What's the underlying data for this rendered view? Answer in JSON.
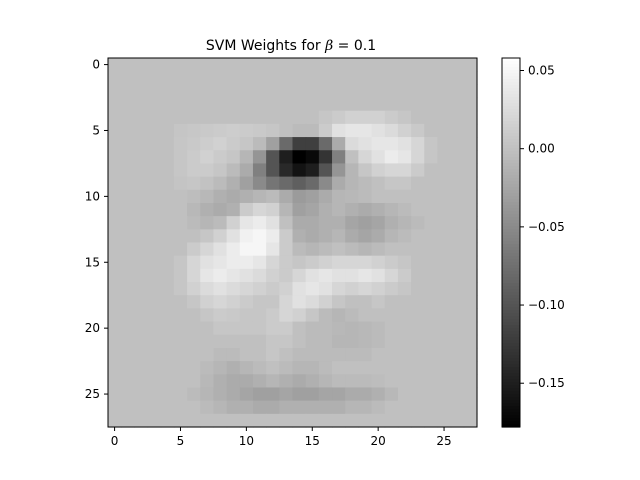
{
  "chart_data": {
    "type": "heatmap",
    "title_text": "SVM Weights for ",
    "title_math": "β",
    "title_value": " = 0.1",
    "colormap": "gray",
    "vmin": -0.178,
    "vmax": 0.058,
    "background_value": 0.0,
    "rows": 28,
    "cols": 28,
    "x_ticks": [
      0,
      5,
      10,
      15,
      20,
      25
    ],
    "y_ticks": [
      0,
      5,
      10,
      15,
      20,
      25
    ],
    "colorbar_ticks": [
      {
        "value": 0.05,
        "label": "0.05"
      },
      {
        "value": 0.0,
        "label": "0.00"
      },
      {
        "value": -0.05,
        "label": "−0.05"
      },
      {
        "value": -0.1,
        "label": "−0.10"
      },
      {
        "value": -0.15,
        "label": "−0.15"
      }
    ],
    "values": [
      [
        0,
        0,
        0,
        0,
        0,
        0,
        0,
        0,
        0,
        0,
        0,
        0,
        0,
        0,
        0,
        0,
        0,
        0,
        0,
        0,
        0,
        0,
        0,
        0,
        0,
        0,
        0,
        0
      ],
      [
        0,
        0,
        0,
        0,
        0,
        0,
        0,
        0,
        0,
        0,
        0,
        0,
        0,
        0,
        0,
        0,
        0,
        0,
        0,
        0,
        0,
        0,
        0,
        0,
        0,
        0,
        0,
        0
      ],
      [
        0,
        0,
        0,
        0,
        0,
        0,
        0,
        0,
        0,
        0,
        0,
        0,
        0,
        0,
        0,
        0,
        0,
        0,
        0,
        0,
        0,
        0,
        0,
        0,
        0,
        0,
        0,
        0
      ],
      [
        0,
        0,
        0,
        0,
        0,
        0,
        0,
        0,
        0,
        0,
        0,
        0,
        0,
        0,
        0,
        0,
        0,
        0,
        0,
        0,
        0,
        0,
        0,
        0,
        0,
        0,
        0,
        0
      ],
      [
        0,
        0,
        0,
        0,
        0,
        0,
        0,
        0,
        0,
        0,
        0,
        0,
        0,
        0,
        0,
        0,
        0.005,
        0.01,
        0.015,
        0.015,
        0.015,
        0.01,
        0.005,
        0,
        0,
        0,
        0,
        0
      ],
      [
        0,
        0,
        0,
        0,
        0,
        0.004,
        0.006,
        0.008,
        0.01,
        0.012,
        0.01,
        0.008,
        0.005,
        0,
        -0.005,
        -0.005,
        0.01,
        0.03,
        0.035,
        0.035,
        0.03,
        0.025,
        0.015,
        0.008,
        0,
        0,
        0,
        0
      ],
      [
        0,
        0,
        0,
        0,
        0,
        0.005,
        0.008,
        0.012,
        0.015,
        0.01,
        0.005,
        -0.005,
        -0.03,
        -0.08,
        -0.12,
        -0.12,
        -0.08,
        -0.02,
        0.025,
        0.03,
        0.035,
        0.035,
        0.03,
        0.02,
        0.005,
        0,
        0,
        0
      ],
      [
        0,
        0,
        0,
        0,
        0,
        0.005,
        0.01,
        0.015,
        0.01,
        0.005,
        -0.01,
        -0.04,
        -0.1,
        -0.15,
        -0.178,
        -0.17,
        -0.13,
        -0.06,
        0,
        0.02,
        0.03,
        0.04,
        0.035,
        0.02,
        0.005,
        0,
        0,
        0
      ],
      [
        0,
        0,
        0,
        0,
        0,
        0.005,
        0.01,
        0.01,
        0.005,
        -0.005,
        -0.02,
        -0.06,
        -0.1,
        -0.14,
        -0.16,
        -0.15,
        -0.1,
        -0.04,
        -0.01,
        0.005,
        0.015,
        0.02,
        0.02,
        0.01,
        0,
        0,
        0,
        0
      ],
      [
        0,
        0,
        0,
        0,
        0,
        0.003,
        0.005,
        0.002,
        -0.005,
        -0.015,
        -0.03,
        -0.05,
        -0.07,
        -0.08,
        -0.09,
        -0.08,
        -0.05,
        -0.02,
        -0.01,
        -0.005,
        0,
        0.005,
        0.005,
        0,
        0,
        0,
        0,
        0
      ],
      [
        0,
        0,
        0,
        0,
        0,
        0,
        -0.003,
        -0.008,
        -0.015,
        -0.02,
        -0.015,
        -0.01,
        -0.005,
        -0.02,
        -0.035,
        -0.03,
        -0.02,
        -0.01,
        -0.008,
        -0.005,
        0,
        0,
        0,
        0,
        0,
        0,
        0,
        0
      ],
      [
        0,
        0,
        0,
        0,
        0,
        0,
        -0.008,
        -0.015,
        -0.02,
        -0.015,
        0.01,
        0.02,
        0.015,
        -0.01,
        -0.03,
        -0.025,
        -0.015,
        -0.01,
        -0.015,
        -0.02,
        -0.015,
        -0.01,
        -0.005,
        0,
        0,
        0,
        0,
        0
      ],
      [
        0,
        0,
        0,
        0,
        0,
        0,
        -0.005,
        -0.01,
        -0.005,
        0.015,
        0.035,
        0.04,
        0.03,
        0,
        -0.02,
        -0.02,
        -0.015,
        -0.015,
        -0.025,
        -0.03,
        -0.025,
        -0.015,
        -0.01,
        -0.005,
        0,
        0,
        0,
        0
      ],
      [
        0,
        0,
        0,
        0,
        0,
        0,
        0,
        0.005,
        0.015,
        0.03,
        0.045,
        0.05,
        0.04,
        0.01,
        -0.015,
        -0.02,
        -0.015,
        -0.01,
        -0.02,
        -0.025,
        -0.02,
        -0.01,
        -0.005,
        0,
        0,
        0,
        0,
        0
      ],
      [
        0,
        0,
        0,
        0,
        0,
        0,
        0.01,
        0.02,
        0.03,
        0.04,
        0.05,
        0.05,
        0.035,
        0.01,
        -0.005,
        -0.01,
        -0.005,
        0,
        -0.005,
        -0.01,
        -0.005,
        0,
        0,
        0,
        0,
        0,
        0,
        0
      ],
      [
        0,
        0,
        0,
        0,
        0,
        0.005,
        0.02,
        0.03,
        0.035,
        0.04,
        0.04,
        0.035,
        0.02,
        0.01,
        0.005,
        0.01,
        0.015,
        0.02,
        0.02,
        0.02,
        0.015,
        0.01,
        0.005,
        0,
        0,
        0,
        0,
        0
      ],
      [
        0,
        0,
        0,
        0,
        0,
        0.005,
        0.02,
        0.035,
        0.04,
        0.035,
        0.03,
        0.025,
        0.015,
        0.01,
        0.02,
        0.03,
        0.035,
        0.03,
        0.03,
        0.035,
        0.03,
        0.02,
        0.01,
        0,
        0,
        0,
        0,
        0
      ],
      [
        0,
        0,
        0,
        0,
        0,
        0.005,
        0.015,
        0.025,
        0.03,
        0.025,
        0.02,
        0.015,
        0.01,
        0.015,
        0.03,
        0.035,
        0.03,
        0.02,
        0.015,
        0.02,
        0.015,
        0.01,
        0.005,
        0,
        0,
        0,
        0,
        0
      ],
      [
        0,
        0,
        0,
        0,
        0,
        0,
        0.005,
        0.015,
        0.02,
        0.015,
        0.01,
        0.005,
        0.005,
        0.02,
        0.03,
        0.025,
        0.015,
        0.005,
        0,
        0,
        0.005,
        0,
        0,
        0,
        0,
        0,
        0,
        0
      ],
      [
        0,
        0,
        0,
        0,
        0,
        0,
        0,
        0.005,
        0.01,
        0.008,
        0.005,
        0.005,
        0.01,
        0.02,
        0.015,
        0.005,
        -0.005,
        -0.01,
        -0.005,
        0,
        0,
        0,
        0,
        0,
        0,
        0,
        0,
        0
      ],
      [
        0,
        0,
        0,
        0,
        0,
        0,
        0,
        0,
        0.005,
        0.005,
        0.005,
        0.005,
        0.01,
        0.01,
        0,
        -0.005,
        -0.005,
        -0.008,
        -0.01,
        -0.008,
        -0.005,
        0,
        0,
        0,
        0,
        0,
        0,
        0
      ],
      [
        0,
        0,
        0,
        0,
        0,
        0,
        0,
        0,
        0,
        0,
        0,
        0,
        0.005,
        0.005,
        0,
        -0.005,
        -0.005,
        -0.01,
        -0.01,
        -0.008,
        -0.005,
        0,
        0,
        0,
        0,
        0,
        0,
        0
      ],
      [
        0,
        0,
        0,
        0,
        0,
        0,
        0,
        0,
        -0.005,
        -0.005,
        0,
        0,
        0.005,
        0,
        -0.005,
        -0.005,
        -0.005,
        -0.005,
        -0.005,
        -0.005,
        0,
        0,
        0,
        0,
        0,
        0,
        0,
        0
      ],
      [
        0,
        0,
        0,
        0,
        0,
        0,
        0,
        -0.005,
        -0.01,
        -0.015,
        -0.01,
        -0.005,
        0,
        -0.005,
        -0.01,
        -0.01,
        -0.005,
        0,
        0,
        0,
        0,
        0,
        0,
        0,
        0,
        0,
        0,
        0
      ],
      [
        0,
        0,
        0,
        0,
        0,
        0,
        0,
        -0.008,
        -0.015,
        -0.02,
        -0.02,
        -0.015,
        -0.01,
        -0.015,
        -0.02,
        -0.015,
        -0.01,
        -0.005,
        -0.005,
        -0.005,
        -0.003,
        0,
        0,
        0,
        0,
        0,
        0,
        0
      ],
      [
        0,
        0,
        0,
        0,
        0,
        0,
        -0.005,
        -0.01,
        -0.015,
        -0.02,
        -0.025,
        -0.03,
        -0.03,
        -0.025,
        -0.03,
        -0.03,
        -0.025,
        -0.025,
        -0.02,
        -0.02,
        -0.015,
        -0.008,
        0,
        0,
        0,
        0,
        0,
        0
      ],
      [
        0,
        0,
        0,
        0,
        0,
        0,
        0,
        -0.005,
        -0.01,
        -0.015,
        -0.015,
        -0.02,
        -0.02,
        -0.015,
        -0.015,
        -0.015,
        -0.015,
        -0.015,
        -0.01,
        -0.01,
        -0.005,
        0,
        0,
        0,
        0,
        0,
        0,
        0
      ],
      [
        0,
        0,
        0,
        0,
        0,
        0,
        0,
        0,
        0,
        0,
        0,
        0,
        0,
        0,
        0,
        0,
        0,
        0,
        0,
        0,
        0,
        0,
        0,
        0,
        0,
        0,
        0,
        0
      ]
    ]
  }
}
